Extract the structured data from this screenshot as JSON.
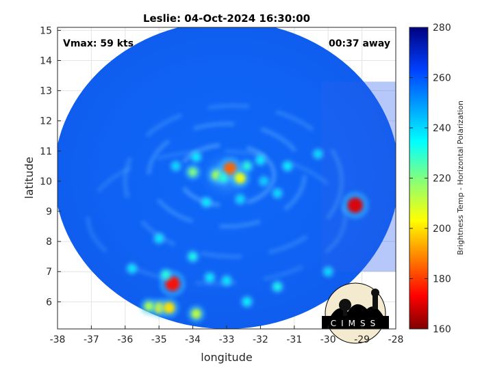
{
  "chart_data": {
    "type": "heatmap",
    "title": "Leslie: 04-Oct-2024 16:30:00",
    "xlabel": "longitude",
    "ylabel": "latitude",
    "xlim": [
      -38,
      -28
    ],
    "ylim": [
      5.1,
      15.1
    ],
    "x_ticks": [
      -38,
      -37,
      -36,
      -35,
      -34,
      -33,
      -32,
      -31,
      -30,
      -29,
      -28
    ],
    "y_ticks": [
      6,
      7,
      8,
      9,
      10,
      11,
      12,
      13,
      14,
      15
    ],
    "grid": true,
    "annotations": {
      "vmax": "Vmax: 59 kts",
      "time_away": "00:37 away"
    },
    "colorbar": {
      "label": "Brightness Temp - Horizontal Polarization",
      "min": 160,
      "max": 280,
      "ticks": [
        160,
        180,
        200,
        220,
        240,
        260,
        280
      ]
    },
    "swath": {
      "center": [
        -33.0,
        10.2
      ],
      "radius_deg": 5.1,
      "background_value": 255
    },
    "features": [
      {
        "lon": -32.9,
        "lat": 10.4,
        "value": 185
      },
      {
        "lon": -32.6,
        "lat": 10.1,
        "value": 205
      },
      {
        "lon": -33.3,
        "lat": 10.2,
        "value": 215
      },
      {
        "lon": -33.1,
        "lat": 10.1,
        "value": 230
      },
      {
        "lon": -32.4,
        "lat": 10.5,
        "value": 230
      },
      {
        "lon": -34.0,
        "lat": 10.3,
        "value": 220
      },
      {
        "lon": -33.9,
        "lat": 10.8,
        "value": 235
      },
      {
        "lon": -34.5,
        "lat": 10.5,
        "value": 238
      },
      {
        "lon": -32.0,
        "lat": 10.7,
        "value": 235
      },
      {
        "lon": -31.9,
        "lat": 10.0,
        "value": 240
      },
      {
        "lon": -32.6,
        "lat": 9.4,
        "value": 238
      },
      {
        "lon": -33.6,
        "lat": 9.3,
        "value": 236
      },
      {
        "lon": -31.5,
        "lat": 9.6,
        "value": 238
      },
      {
        "lon": -31.2,
        "lat": 10.5,
        "value": 235
      },
      {
        "lon": -29.2,
        "lat": 9.2,
        "value": 170
      },
      {
        "lon": -34.6,
        "lat": 6.6,
        "value": 175
      },
      {
        "lon": -35.0,
        "lat": 5.8,
        "value": 205
      },
      {
        "lon": -34.7,
        "lat": 5.8,
        "value": 200
      },
      {
        "lon": -35.3,
        "lat": 5.85,
        "value": 215
      },
      {
        "lon": -33.9,
        "lat": 5.6,
        "value": 212
      },
      {
        "lon": -34.0,
        "lat": 7.5,
        "value": 232
      },
      {
        "lon": -34.8,
        "lat": 6.9,
        "value": 230
      },
      {
        "lon": -33.5,
        "lat": 6.8,
        "value": 235
      },
      {
        "lon": -33.0,
        "lat": 6.7,
        "value": 236
      },
      {
        "lon": -35.8,
        "lat": 7.1,
        "value": 236
      },
      {
        "lon": -31.5,
        "lat": 6.5,
        "value": 232
      },
      {
        "lon": -32.4,
        "lat": 6.0,
        "value": 234
      },
      {
        "lon": -35.0,
        "lat": 8.1,
        "value": 236
      },
      {
        "lon": -30.0,
        "lat": 7.0,
        "value": 238
      },
      {
        "lon": -30.3,
        "lat": 10.9,
        "value": 238
      }
    ],
    "logo": "CIMSS"
  }
}
